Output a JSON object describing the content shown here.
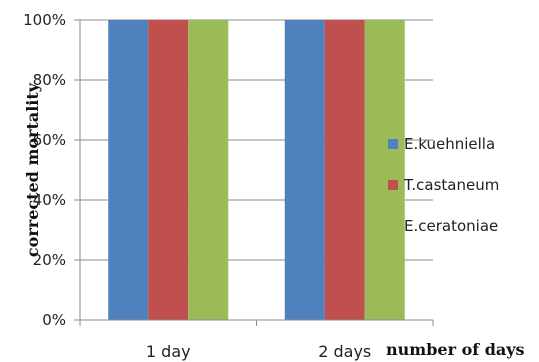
{
  "chart_data": {
    "type": "bar",
    "title": "",
    "xlabel": "number of days",
    "ylabel": "corrected mortality",
    "categories": [
      "1 day",
      "2 days"
    ],
    "series": [
      {
        "name": "E.kuehniella",
        "values": [
          100,
          100
        ],
        "color": "#4f81bd"
      },
      {
        "name": "T.castaneum",
        "values": [
          100,
          100
        ],
        "color": "#c0504d"
      },
      {
        "name": "E.ceratoniae",
        "values": [
          100,
          100
        ],
        "color": "#9bbb59"
      }
    ],
    "ylim": [
      0,
      100
    ],
    "yticks": [
      0,
      20,
      40,
      60,
      80,
      100
    ],
    "ytick_labels": [
      "0%",
      "20%",
      "40%",
      "60%",
      "80%",
      "100%"
    ],
    "grid": true,
    "legend_position": "right"
  }
}
